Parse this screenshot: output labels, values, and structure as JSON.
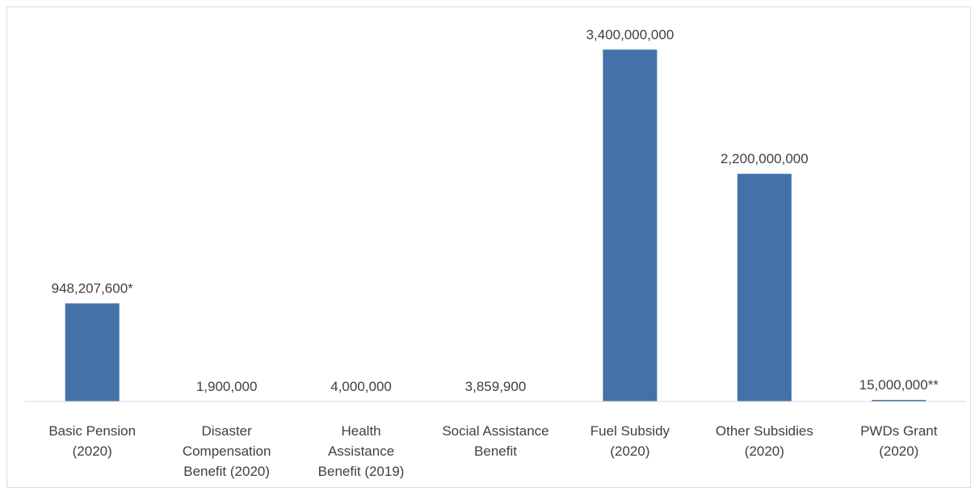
{
  "chart_data": {
    "type": "bar",
    "categories": [
      [
        "Basic Pension",
        "(2020)"
      ],
      [
        "Disaster",
        "Compensation",
        "Benefit (2020)"
      ],
      [
        "Health",
        "Assistance",
        "Benefit (2019)"
      ],
      [
        "Social Assistance",
        "Benefit"
      ],
      [
        "Fuel Subsidy",
        "(2020)"
      ],
      [
        "Other Subsidies",
        "(2020)"
      ],
      [
        "PWDs Grant",
        "(2020)"
      ]
    ],
    "values": [
      948207600,
      1900000,
      4000000,
      3859900,
      3400000000,
      2200000000,
      15000000
    ],
    "data_labels": [
      "948,207,600*",
      "1,900,000",
      "4,000,000",
      "3,859,900",
      "3,400,000,000",
      "2,200,000,000",
      "15,000,000**"
    ],
    "ylim": [
      0,
      3450000000
    ],
    "grid": false,
    "legend": "none",
    "bar_color": "#4472a8",
    "axis_color": "#d9d9d9",
    "text_color": "#404040"
  }
}
